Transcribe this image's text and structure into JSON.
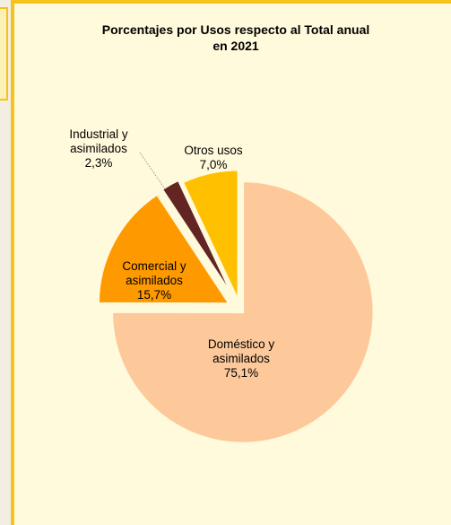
{
  "chart_data": {
    "type": "pie",
    "title_lines": [
      "Porcentajes por Usos respecto al Total anual",
      "en 2021"
    ],
    "slices": [
      {
        "name_lines": [
          "Doméstico y",
          "asimilados"
        ],
        "value": 75.1,
        "value_label": "75,1%",
        "color": "#fdc99a"
      },
      {
        "name_lines": [
          "Comercial y",
          "asimilados"
        ],
        "value": 15.7,
        "value_label": "15,7%",
        "color": "#ff9900"
      },
      {
        "name_lines": [
          "Industrial y",
          "asimilados"
        ],
        "value": 2.3,
        "value_label": "2,3%",
        "color": "#632523"
      },
      {
        "name_lines": [
          "Otros usos"
        ],
        "value": 7.0,
        "value_label": "7,0%",
        "color": "#ffc000"
      }
    ],
    "exploded": true,
    "legend": "none"
  },
  "colors": {
    "background": "#fffadc",
    "border": "#f6c21c"
  }
}
